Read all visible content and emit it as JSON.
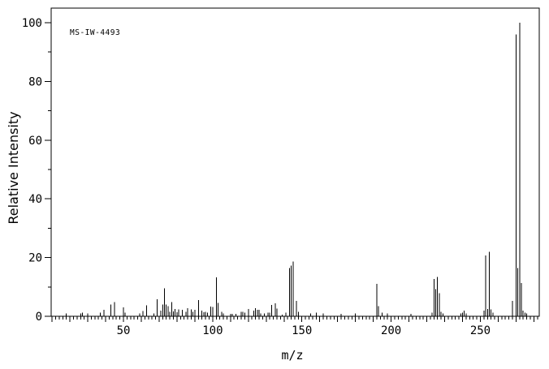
{
  "figure": {
    "annotation": "MS-IW-4493",
    "background_color": "#ffffff",
    "foreground_color": "#000000"
  },
  "chart_data": {
    "type": "bar",
    "subtype": "mass-spectrum",
    "title": "MS-IW-4493",
    "xlabel": "m/z",
    "ylabel": "Relative Intensity",
    "xlim": [
      9.5,
      283
    ],
    "ylim": [
      0,
      105
    ],
    "x_major_ticks": [
      50,
      100,
      150,
      200,
      250
    ],
    "x_medium_tick_step": 10,
    "x_minor_tick_step": 2,
    "y_major_ticks": [
      0,
      20,
      40,
      60,
      80,
      100
    ],
    "y_minor_tick_step": 10,
    "grid": false,
    "legend": "none",
    "colors": {
      "axis": "#000000",
      "bars": "#000000",
      "background": "#ffffff",
      "text": "#000000"
    },
    "peaks": [
      [
        18,
        1.0
      ],
      [
        26,
        1.0
      ],
      [
        27,
        1.3
      ],
      [
        30,
        1.0
      ],
      [
        37,
        1.2
      ],
      [
        39,
        2.2
      ],
      [
        43,
        4.0
      ],
      [
        45,
        4.9
      ],
      [
        50,
        3.0
      ],
      [
        51,
        1.2
      ],
      [
        59,
        1.0
      ],
      [
        61,
        1.8
      ],
      [
        63,
        3.7
      ],
      [
        67,
        1.0
      ],
      [
        69,
        5.8
      ],
      [
        71,
        2.0
      ],
      [
        72,
        4.0
      ],
      [
        73,
        9.5
      ],
      [
        74,
        4.0
      ],
      [
        75,
        3.5
      ],
      [
        76,
        1.5
      ],
      [
        77,
        4.8
      ],
      [
        78,
        1.6
      ],
      [
        79,
        2.5
      ],
      [
        80,
        1.4
      ],
      [
        81,
        2.4
      ],
      [
        83,
        2.2
      ],
      [
        85,
        1.5
      ],
      [
        86,
        2.7
      ],
      [
        88,
        2.3
      ],
      [
        89,
        1.5
      ],
      [
        90,
        2.2
      ],
      [
        92,
        5.5
      ],
      [
        94,
        2.0
      ],
      [
        95,
        1.4
      ],
      [
        96,
        1.5
      ],
      [
        97,
        1.3
      ],
      [
        99,
        3.3
      ],
      [
        100,
        3.2
      ],
      [
        102,
        13.2
      ],
      [
        103,
        4.5
      ],
      [
        105,
        1.5
      ],
      [
        106,
        1.0
      ],
      [
        110,
        0.8
      ],
      [
        111,
        0.8
      ],
      [
        113,
        0.8
      ],
      [
        116,
        1.5
      ],
      [
        117,
        1.5
      ],
      [
        118,
        1.3
      ],
      [
        120,
        2.5
      ],
      [
        123,
        2.0
      ],
      [
        124,
        2.8
      ],
      [
        125,
        2.2
      ],
      [
        126,
        2.2
      ],
      [
        127,
        1.0
      ],
      [
        129,
        1.0
      ],
      [
        131,
        1.2
      ],
      [
        132,
        1.2
      ],
      [
        133,
        3.9
      ],
      [
        135,
        4.4
      ],
      [
        136,
        2.6
      ],
      [
        139,
        0.6
      ],
      [
        141,
        1.2
      ],
      [
        143,
        16.5
      ],
      [
        144,
        17.2
      ],
      [
        145,
        18.6
      ],
      [
        147,
        5.3
      ],
      [
        148,
        1.5
      ],
      [
        155,
        1.0
      ],
      [
        158,
        1.2
      ],
      [
        162,
        1.0
      ],
      [
        172,
        0.8
      ],
      [
        180,
        1.0
      ],
      [
        192,
        11.1
      ],
      [
        193,
        3.5
      ],
      [
        195,
        1.2
      ],
      [
        198,
        1.0
      ],
      [
        211,
        0.8
      ],
      [
        223,
        1.2
      ],
      [
        224,
        12.7
      ],
      [
        225,
        9.2
      ],
      [
        226,
        13.4
      ],
      [
        227,
        7.9
      ],
      [
        228,
        1.5
      ],
      [
        229,
        1.0
      ],
      [
        239,
        1.0
      ],
      [
        240,
        1.3
      ],
      [
        241,
        2.0
      ],
      [
        242,
        1.0
      ],
      [
        252,
        2.0
      ],
      [
        253,
        20.7
      ],
      [
        254,
        2.5
      ],
      [
        255,
        21.9
      ],
      [
        256,
        2.3
      ],
      [
        257,
        1.2
      ],
      [
        268,
        5.3
      ],
      [
        270,
        96.0
      ],
      [
        271,
        16.4
      ],
      [
        272,
        100.0
      ],
      [
        273,
        11.3
      ],
      [
        274,
        2.0
      ],
      [
        275,
        1.3
      ],
      [
        276,
        1.0
      ]
    ]
  }
}
